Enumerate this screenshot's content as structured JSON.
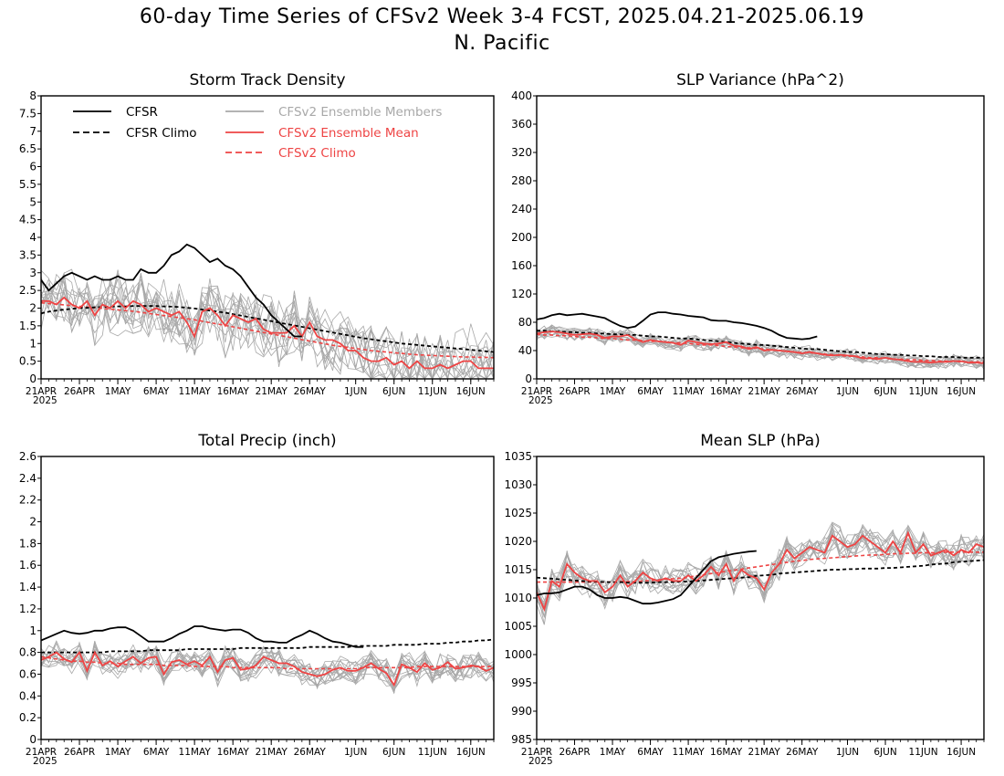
{
  "page": {
    "title_line1": "60-day Time Series of CFSv2 Week 3-4 FCST, 2025.04.21-2025.06.19",
    "title_line2": "N. Pacific"
  },
  "legend": {
    "cfsr": "CFSR",
    "cfsr_climo": "CFSR Climo",
    "members": "CFSv2 Ensemble Members",
    "ens_mean": "CFSv2 Ensemble Mean",
    "cfsv2_climo": "CFSv2 Climo"
  },
  "colors": {
    "cfsr": "#000000",
    "members": "#a8a8a8",
    "ens_mean": "#ee4444",
    "frame": "#000000"
  },
  "x_ticks": {
    "labels": [
      "21APR",
      "26APR",
      "1MAY",
      "6MAY",
      "11MAY",
      "16MAY",
      "21MAY",
      "26MAY",
      "1JUN",
      "6JUN",
      "11JUN",
      "16JUN"
    ],
    "days": [
      0,
      5,
      10,
      15,
      20,
      25,
      30,
      35,
      41,
      46,
      51,
      56
    ],
    "year_label": "2025"
  },
  "chart_data": [
    {
      "type": "line",
      "title": "Storm Track Density",
      "ylim": [
        0,
        8
      ],
      "yticks": [
        "0",
        "0.5",
        "1",
        "1.5",
        "2",
        "2.5",
        "3",
        "3.5",
        "4",
        "4.5",
        "5",
        "5.5",
        "6",
        "6.5",
        "7",
        "7.5",
        "8"
      ],
      "ytick_values": [
        0,
        0.5,
        1,
        1.5,
        2,
        2.5,
        3,
        3.5,
        4,
        4.5,
        5,
        5.5,
        6,
        6.5,
        7,
        7.5,
        8
      ],
      "xlim": [
        0,
        59
      ],
      "cfsr": [
        2.8,
        2.5,
        2.7,
        2.9,
        3.0,
        2.9,
        2.8,
        2.9,
        2.8,
        2.8,
        2.9,
        2.8,
        2.8,
        3.1,
        3.0,
        3.0,
        3.2,
        3.5,
        3.6,
        3.8,
        3.7,
        3.5,
        3.3,
        3.4,
        3.2,
        3.1,
        2.9,
        2.6,
        2.3,
        2.1,
        1.8,
        1.6,
        1.4,
        1.2,
        1.2
      ],
      "cfsr_climo": [
        1.85,
        1.9,
        1.93,
        1.96,
        1.98,
        2.0,
        2.01,
        2.02,
        2.03,
        2.04,
        2.05,
        2.05,
        2.06,
        2.06,
        2.06,
        2.06,
        2.05,
        2.04,
        2.03,
        2.01,
        1.99,
        1.96,
        1.93,
        1.9,
        1.87,
        1.83,
        1.79,
        1.75,
        1.71,
        1.67,
        1.63,
        1.59,
        1.55,
        1.51,
        1.47,
        1.43,
        1.39,
        1.35,
        1.31,
        1.27,
        1.23,
        1.19,
        1.15,
        1.12,
        1.09,
        1.06,
        1.03,
        1.0,
        0.98,
        0.96,
        0.94,
        0.92,
        0.9,
        0.88,
        0.86,
        0.84,
        0.82,
        0.8,
        0.78,
        0.76
      ],
      "ens_mean": [
        2.2,
        2.2,
        2.1,
        2.3,
        2.1,
        2.0,
        2.2,
        1.8,
        2.1,
        2.0,
        2.2,
        2.0,
        2.2,
        2.1,
        1.9,
        2.0,
        1.9,
        1.8,
        1.9,
        1.6,
        1.2,
        1.9,
        2.0,
        1.8,
        1.5,
        1.8,
        1.7,
        1.6,
        1.7,
        1.4,
        1.3,
        1.3,
        1.3,
        1.5,
        1.2,
        1.6,
        1.2,
        1.1,
        1.1,
        1.0,
        0.8,
        0.8,
        0.6,
        0.5,
        0.5,
        0.6,
        0.4,
        0.5,
        0.3,
        0.5,
        0.3,
        0.3,
        0.4,
        0.3,
        0.4,
        0.5,
        0.5,
        0.3,
        0.3,
        0.3
      ],
      "cfsv2_climo": [
        2.15,
        2.13,
        2.11,
        2.09,
        2.07,
        2.05,
        2.03,
        2.01,
        1.99,
        1.97,
        1.95,
        1.93,
        1.91,
        1.88,
        1.85,
        1.82,
        1.79,
        1.76,
        1.73,
        1.7,
        1.67,
        1.63,
        1.59,
        1.55,
        1.51,
        1.47,
        1.43,
        1.39,
        1.35,
        1.31,
        1.27,
        1.23,
        1.19,
        1.15,
        1.11,
        1.07,
        1.03,
        0.99,
        0.95,
        0.92,
        0.89,
        0.86,
        0.83,
        0.8,
        0.78,
        0.76,
        0.74,
        0.72,
        0.7,
        0.68,
        0.67,
        0.66,
        0.65,
        0.64,
        0.63,
        0.62,
        0.62,
        0.61,
        0.61,
        0.6
      ],
      "members": {
        "count": 14,
        "spread": 1.0
      }
    },
    {
      "type": "line",
      "title": "SLP Variance (hPa^2)",
      "ylim": [
        0,
        400
      ],
      "yticks": [
        "0",
        "40",
        "80",
        "120",
        "160",
        "200",
        "240",
        "280",
        "320",
        "360",
        "400"
      ],
      "ytick_values": [
        0,
        40,
        80,
        120,
        160,
        200,
        240,
        280,
        320,
        360,
        400
      ],
      "xlim": [
        0,
        59
      ],
      "cfsr": [
        84,
        86,
        90,
        92,
        90,
        91,
        92,
        90,
        88,
        86,
        80,
        75,
        72,
        74,
        82,
        91,
        94,
        94,
        92,
        91,
        89,
        88,
        87,
        83,
        82,
        82,
        80,
        79,
        77,
        75,
        72,
        68,
        62,
        58,
        57,
        56,
        57,
        60
      ],
      "cfsr_climo": [
        68,
        68,
        67,
        67,
        66,
        66,
        65,
        65,
        64,
        64,
        63,
        63,
        62,
        62,
        61,
        60,
        60,
        59,
        58,
        57,
        57,
        56,
        55,
        54,
        53,
        52,
        51,
        50,
        49,
        48,
        48,
        47,
        46,
        45,
        44,
        43,
        42,
        42,
        41,
        40,
        39,
        38,
        38,
        37,
        36,
        35,
        35,
        34,
        34,
        33,
        33,
        32,
        32,
        31,
        31,
        31,
        30,
        30,
        30,
        30
      ],
      "ens_mean": [
        64,
        66,
        67,
        66,
        64,
        62,
        63,
        64,
        62,
        58,
        60,
        60,
        62,
        56,
        52,
        55,
        53,
        52,
        51,
        48,
        54,
        52,
        50,
        49,
        50,
        52,
        47,
        46,
        42,
        45,
        40,
        41,
        40,
        39,
        38,
        36,
        38,
        36,
        34,
        33,
        34,
        33,
        32,
        29,
        29,
        28,
        30,
        28,
        27,
        25,
        24,
        24,
        23,
        24,
        24,
        25,
        25,
        23,
        23,
        22
      ],
      "cfsv2_climo": [
        63,
        62,
        62,
        61,
        61,
        60,
        59,
        59,
        58,
        57,
        57,
        56,
        55,
        55,
        54,
        53,
        53,
        52,
        51,
        51,
        50,
        49,
        48,
        48,
        47,
        46,
        45,
        44,
        44,
        43,
        42,
        41,
        40,
        39,
        38,
        37,
        37,
        36,
        35,
        34,
        33,
        32,
        32,
        31,
        30,
        30,
        29,
        28,
        28,
        27,
        27,
        26,
        26,
        25,
        25,
        25,
        24,
        24,
        24,
        24
      ],
      "members": {
        "count": 14,
        "spread": 10
      }
    },
    {
      "type": "line",
      "title": "Total Precip (inch)",
      "ylim": [
        0,
        2.6
      ],
      "yticks": [
        "0",
        "0.2",
        "0.4",
        "0.6",
        "0.8",
        "1",
        "1.2",
        "1.4",
        "1.6",
        "1.8",
        "2",
        "2.2",
        "2.4",
        "2.6"
      ],
      "ytick_values": [
        0,
        0.2,
        0.4,
        0.6,
        0.8,
        1,
        1.2,
        1.4,
        1.6,
        1.8,
        2,
        2.2,
        2.4,
        2.6
      ],
      "xlim": [
        0,
        59
      ],
      "cfsr": [
        0.91,
        0.94,
        0.97,
        1.0,
        0.98,
        0.97,
        0.98,
        1.0,
        1.0,
        1.02,
        1.03,
        1.03,
        1.0,
        0.95,
        0.9,
        0.9,
        0.9,
        0.93,
        0.97,
        1.0,
        1.04,
        1.04,
        1.02,
        1.01,
        1.0,
        1.01,
        1.01,
        0.98,
        0.93,
        0.9,
        0.9,
        0.89,
        0.89,
        0.93,
        0.96,
        1.0,
        0.97,
        0.93,
        0.9,
        0.89,
        0.87,
        0.85,
        0.85
      ],
      "cfsr_climo": [
        0.8,
        0.8,
        0.8,
        0.8,
        0.8,
        0.8,
        0.8,
        0.8,
        0.8,
        0.81,
        0.81,
        0.81,
        0.81,
        0.81,
        0.82,
        0.82,
        0.82,
        0.82,
        0.82,
        0.83,
        0.83,
        0.83,
        0.83,
        0.83,
        0.83,
        0.83,
        0.84,
        0.84,
        0.84,
        0.84,
        0.84,
        0.84,
        0.84,
        0.84,
        0.84,
        0.85,
        0.85,
        0.85,
        0.85,
        0.85,
        0.85,
        0.86,
        0.86,
        0.86,
        0.86,
        0.86,
        0.87,
        0.87,
        0.87,
        0.87,
        0.88,
        0.88,
        0.88,
        0.89,
        0.89,
        0.9,
        0.9,
        0.91,
        0.91,
        0.92
      ],
      "ens_mean": [
        0.73,
        0.76,
        0.8,
        0.74,
        0.71,
        0.8,
        0.63,
        0.8,
        0.68,
        0.72,
        0.67,
        0.72,
        0.76,
        0.7,
        0.75,
        0.76,
        0.6,
        0.71,
        0.73,
        0.69,
        0.72,
        0.68,
        0.76,
        0.62,
        0.73,
        0.75,
        0.64,
        0.65,
        0.68,
        0.76,
        0.73,
        0.7,
        0.7,
        0.67,
        0.62,
        0.6,
        0.58,
        0.6,
        0.64,
        0.66,
        0.63,
        0.63,
        0.66,
        0.7,
        0.65,
        0.61,
        0.5,
        0.69,
        0.66,
        0.62,
        0.7,
        0.64,
        0.66,
        0.71,
        0.65,
        0.66,
        0.68,
        0.67,
        0.63,
        0.66
      ],
      "cfsv2_climo": [
        0.76,
        0.75,
        0.74,
        0.73,
        0.72,
        0.72,
        0.71,
        0.71,
        0.7,
        0.7,
        0.7,
        0.69,
        0.69,
        0.69,
        0.69,
        0.69,
        0.68,
        0.68,
        0.68,
        0.68,
        0.67,
        0.67,
        0.67,
        0.67,
        0.67,
        0.66,
        0.66,
        0.66,
        0.66,
        0.66,
        0.66,
        0.66,
        0.65,
        0.65,
        0.65,
        0.65,
        0.65,
        0.65,
        0.65,
        0.65,
        0.65,
        0.65,
        0.66,
        0.66,
        0.66,
        0.66,
        0.66,
        0.66,
        0.66,
        0.67,
        0.67,
        0.67,
        0.67,
        0.67,
        0.67,
        0.67,
        0.67,
        0.67,
        0.67,
        0.67
      ],
      "members": {
        "count": 14,
        "spread": 0.13
      }
    },
    {
      "type": "line",
      "title": "Mean SLP (hPa)",
      "ylim": [
        985,
        1035
      ],
      "yticks": [
        "985",
        "990",
        "995",
        "1000",
        "1005",
        "1010",
        "1015",
        "1020",
        "1025",
        "1030",
        "1035"
      ],
      "ytick_values": [
        985,
        990,
        995,
        1000,
        1005,
        1010,
        1015,
        1020,
        1025,
        1030,
        1035
      ],
      "xlim": [
        0,
        59
      ],
      "cfsr": [
        1010.5,
        1010.8,
        1010.8,
        1011.0,
        1011.5,
        1012.0,
        1012.0,
        1011.5,
        1010.5,
        1010.0,
        1010.0,
        1010.2,
        1010.0,
        1009.5,
        1009.0,
        1009.0,
        1009.2,
        1009.5,
        1009.8,
        1010.5,
        1012.0,
        1013.5,
        1015.0,
        1016.5,
        1017.2,
        1017.5,
        1017.8,
        1018.0,
        1018.2,
        1018.3
      ],
      "cfsr_climo": [
        1013.6,
        1013.5,
        1013.4,
        1013.3,
        1013.2,
        1013.1,
        1013.0,
        1012.9,
        1012.9,
        1012.8,
        1012.8,
        1012.8,
        1012.7,
        1012.7,
        1012.7,
        1012.7,
        1012.8,
        1012.8,
        1012.8,
        1012.9,
        1012.9,
        1013.0,
        1013.1,
        1013.2,
        1013.3,
        1013.4,
        1013.5,
        1013.6,
        1013.7,
        1013.9,
        1014.0,
        1014.1,
        1014.3,
        1014.4,
        1014.5,
        1014.6,
        1014.7,
        1014.8,
        1014.9,
        1015.0,
        1015.0,
        1015.1,
        1015.1,
        1015.2,
        1015.2,
        1015.2,
        1015.3,
        1015.3,
        1015.4,
        1015.5,
        1015.6,
        1015.7,
        1015.9,
        1016.0,
        1016.1,
        1016.3,
        1016.4,
        1016.5,
        1016.6,
        1016.7
      ],
      "ens_mean": [
        1011.0,
        1008.0,
        1013.0,
        1012.0,
        1016.0,
        1014.5,
        1013.5,
        1013.0,
        1013.0,
        1011.0,
        1012.0,
        1014.0,
        1012.0,
        1013.0,
        1014.5,
        1013.5,
        1013.0,
        1013.5,
        1013.0,
        1013.0,
        1014.0,
        1013.0,
        1014.0,
        1015.5,
        1014.0,
        1016.0,
        1013.0,
        1015.0,
        1014.0,
        1013.5,
        1011.5,
        1014.5,
        1016.0,
        1018.5,
        1017.0,
        1018.0,
        1019.0,
        1018.5,
        1018.0,
        1021.0,
        1020.0,
        1019.0,
        1019.5,
        1021.0,
        1020.0,
        1019.0,
        1018.0,
        1020.0,
        1018.0,
        1021.5,
        1018.0,
        1019.5,
        1017.5,
        1018.0,
        1018.5,
        1017.5,
        1018.5,
        1018.0,
        1019.5,
        1019.0
      ],
      "cfsv2_climo": [
        1012.8,
        1012.8,
        1012.8,
        1012.8,
        1012.8,
        1012.8,
        1012.8,
        1012.8,
        1012.8,
        1012.8,
        1012.8,
        1012.9,
        1012.9,
        1012.9,
        1013.0,
        1013.1,
        1013.2,
        1013.3,
        1013.4,
        1013.5,
        1013.7,
        1013.9,
        1014.1,
        1014.3,
        1014.5,
        1014.7,
        1014.9,
        1015.1,
        1015.3,
        1015.5,
        1015.7,
        1015.9,
        1016.1,
        1016.3,
        1016.5,
        1016.6,
        1016.8,
        1016.9,
        1017.0,
        1017.1,
        1017.2,
        1017.3,
        1017.4,
        1017.5,
        1017.6,
        1017.6,
        1017.7,
        1017.8,
        1017.8,
        1017.9,
        1017.9,
        1018.0,
        1018.0,
        1018.0,
        1018.1,
        1018.1,
        1018.1,
        1018.1,
        1018.1,
        1018.1
      ],
      "members": {
        "count": 14,
        "spread": 2.8
      }
    }
  ]
}
